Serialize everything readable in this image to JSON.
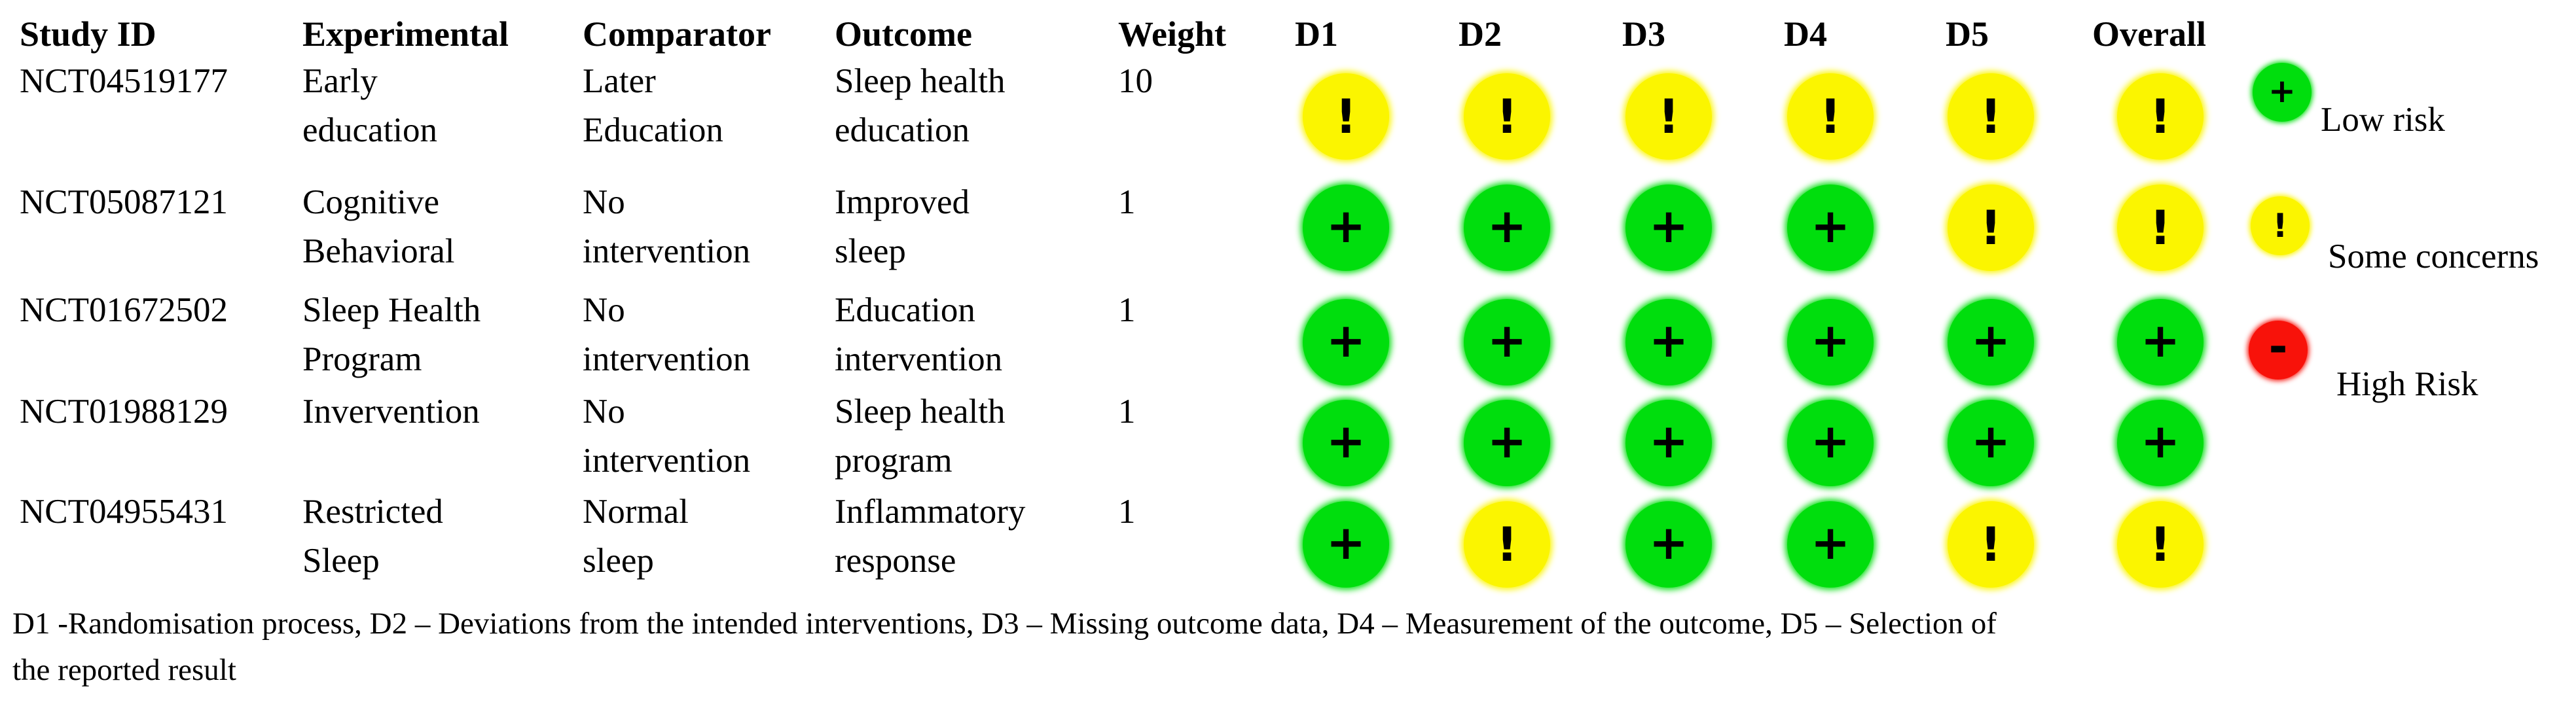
{
  "chart_data": {
    "type": "table",
    "text_columns": [
      "Study ID",
      "Experimental",
      "Comparator",
      "Outcome",
      "Weight"
    ],
    "domain_columns": [
      "D1",
      "D2",
      "D3",
      "D4",
      "D5",
      "Overall"
    ],
    "rows": [
      {
        "study_id": "NCT04519177",
        "experimental": "Early\neducation",
        "comparator": "Later\nEducation",
        "outcome": "Sleep health\neducation",
        "weight": "10",
        "judgments": [
          "some-concerns",
          "some-concerns",
          "some-concerns",
          "some-concerns",
          "some-concerns",
          "some-concerns"
        ]
      },
      {
        "study_id": "NCT05087121",
        "experimental": "Cognitive\nBehavioral",
        "comparator": "No\nintervention",
        "outcome": "Improved\nsleep",
        "weight": "1",
        "judgments": [
          "low-risk",
          "low-risk",
          "low-risk",
          "low-risk",
          "some-concerns",
          "some-concerns"
        ]
      },
      {
        "study_id": "NCT01672502",
        "experimental": "Sleep Health\nProgram",
        "comparator": "No\nintervention",
        "outcome": "Education\nintervention",
        "weight": "1",
        "judgments": [
          "low-risk",
          "low-risk",
          "low-risk",
          "low-risk",
          "low-risk",
          "low-risk"
        ]
      },
      {
        "study_id": "NCT01988129",
        "experimental": "Invervention",
        "comparator": "No\nintervention",
        "outcome": "Sleep health\nprogram",
        "weight": "1",
        "judgments": [
          "low-risk",
          "low-risk",
          "low-risk",
          "low-risk",
          "low-risk",
          "low-risk"
        ]
      },
      {
        "study_id": "NCT04955431",
        "experimental": "Restricted\nSleep",
        "comparator": "Normal\nsleep",
        "outcome": "Inflammatory\nresponse",
        "weight": "1",
        "judgments": [
          "low-risk",
          "some-concerns",
          "low-risk",
          "low-risk",
          "some-concerns",
          "some-concerns"
        ]
      }
    ],
    "legend": [
      {
        "judgment": "low-risk",
        "symbol": "+",
        "label": "Low risk",
        "color": "#00DE0D"
      },
      {
        "judgment": "some-concerns",
        "symbol": "!",
        "label": "Some concerns",
        "color": "#FBF500"
      },
      {
        "judgment": "high-risk",
        "symbol": "-",
        "label": "High Risk",
        "color": "#F8120A"
      }
    ],
    "footnote": "D1 -Randomisation process, D2 – Deviations from the intended interventions, D3 – Missing outcome data, D4 – Measurement of the outcome, D5 – Selection of\nthe reported result"
  }
}
